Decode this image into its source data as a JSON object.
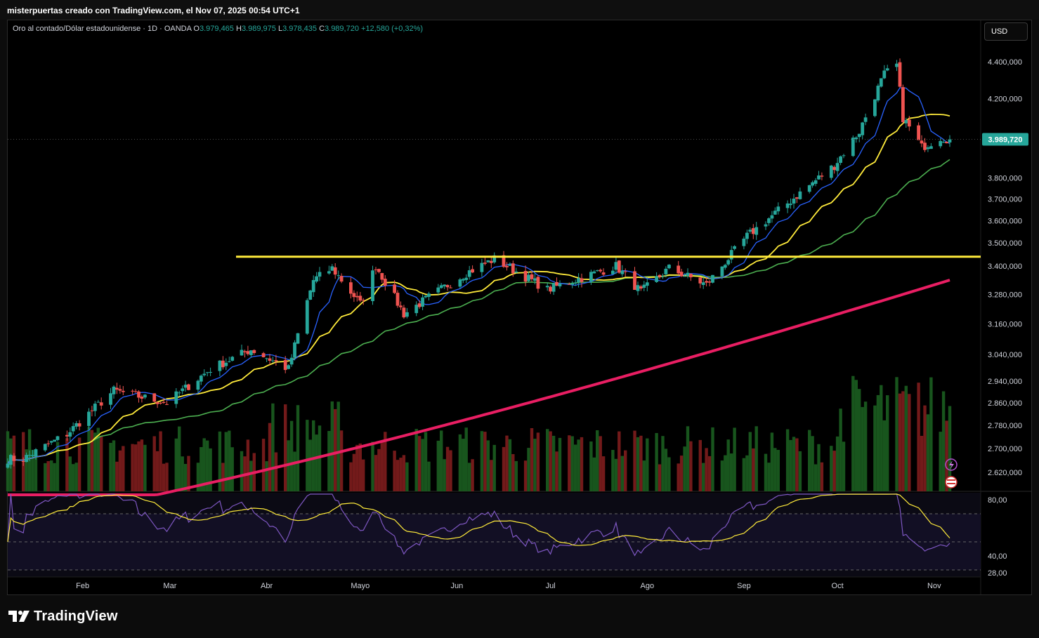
{
  "header": {
    "caption": "misterpuertas creado con TradingView.com, el Nov 07, 2025 00:54 UTC+1"
  },
  "legend": {
    "symbol": "Oro al contado/Dólar estadounidense · 1D · OANDA",
    "open_label": "O",
    "open": "3.979,465",
    "high_label": "H",
    "high": "3.989,975",
    "low_label": "L",
    "low": "3.978,435",
    "close_label": "C",
    "close": "3.989,720",
    "change": "+12,580 (+0,32%)"
  },
  "currency_button": "USD",
  "brand": "TradingView",
  "colors": {
    "bull": "#26a69a",
    "bear": "#ef5350",
    "ma_fast": "#2962ff",
    "ma_mid": "#ffeb3b",
    "ma_slow": "#4caf50",
    "ma_long": "#e91e63",
    "resistance": "#ffeb3b",
    "rsi": "#7e57c2",
    "rsi_ma": "#ffeb3b"
  },
  "chart_data": {
    "type": "candlestick",
    "symbol": "XAUUSD",
    "interval": "1D",
    "y_axis_scale": "log",
    "y_ticks": [
      "4.400,000",
      "4.200,000",
      "3.800,000",
      "3.700,000",
      "3.600,000",
      "3.500,000",
      "3.400,000",
      "3.280,000",
      "3.160,000",
      "3.040,000",
      "2.940,000",
      "2.860,000",
      "2.780,000",
      "2.700,000",
      "2.620,000"
    ],
    "y_tick_values": [
      4400,
      4200,
      3800,
      3700,
      3600,
      3500,
      3400,
      3280,
      3160,
      3040,
      2940,
      2860,
      2780,
      2700,
      2620
    ],
    "price_label": "3.989,720",
    "last_price": 3989.72,
    "x_ticks": [
      "Feb",
      "Mar",
      "Abr",
      "Mayo",
      "Jun",
      "Jul",
      "Ago",
      "Sep",
      "Oct",
      "Nov"
    ],
    "resistance_level": 3440,
    "close_anchors": [
      {
        "date": "2025-01-13",
        "close": 2665
      },
      {
        "date": "2025-01-27",
        "close": 2750
      },
      {
        "date": "2025-02-11",
        "close": 2905
      },
      {
        "date": "2025-02-28",
        "close": 2860
      },
      {
        "date": "2025-03-14",
        "close": 2985
      },
      {
        "date": "2025-03-27",
        "close": 3060
      },
      {
        "date": "2025-04-08",
        "close": 2985
      },
      {
        "date": "2025-04-16",
        "close": 3340
      },
      {
        "date": "2025-04-22",
        "close": 3390
      },
      {
        "date": "2025-05-01",
        "close": 3240
      },
      {
        "date": "2025-05-06",
        "close": 3400
      },
      {
        "date": "2025-05-15",
        "close": 3200
      },
      {
        "date": "2025-06-04",
        "close": 3370
      },
      {
        "date": "2025-06-13",
        "close": 3430
      },
      {
        "date": "2025-06-30",
        "close": 3300
      },
      {
        "date": "2025-07-22",
        "close": 3400
      },
      {
        "date": "2025-07-30",
        "close": 3290
      },
      {
        "date": "2025-08-08",
        "close": 3390
      },
      {
        "date": "2025-08-20",
        "close": 3320
      },
      {
        "date": "2025-09-02",
        "close": 3530
      },
      {
        "date": "2025-09-15",
        "close": 3680
      },
      {
        "date": "2025-09-30",
        "close": 3860
      },
      {
        "date": "2025-10-08",
        "close": 4030
      },
      {
        "date": "2025-10-16",
        "close": 4330
      },
      {
        "date": "2025-10-20",
        "close": 4380
      },
      {
        "date": "2025-10-22",
        "close": 4100
      },
      {
        "date": "2025-10-28",
        "close": 3950
      },
      {
        "date": "2025-11-03",
        "close": 4000
      },
      {
        "date": "2025-11-06",
        "close": 3989.72
      }
    ],
    "indicators": [
      "MA fast (blue)",
      "MA 20 (yellow)",
      "MA 50 (green)",
      "MA 200 (pink)",
      "Volume",
      "RSI 14 with RSI MA"
    ],
    "rsi": {
      "y_ticks": [
        "80,00",
        "40,00",
        "28,00"
      ],
      "y_tick_values": [
        80,
        40,
        28
      ],
      "bands": [
        70,
        50,
        30
      ],
      "ylim": [
        25,
        85
      ]
    }
  }
}
